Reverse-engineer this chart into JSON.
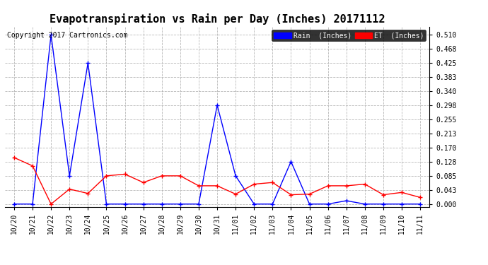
{
  "title": "Evapotranspiration vs Rain per Day (Inches) 20171112",
  "copyright_text": "Copyright 2017 Cartronics.com",
  "x_labels": [
    "10/20",
    "10/21",
    "10/22",
    "10/23",
    "10/24",
    "10/25",
    "10/26",
    "10/27",
    "10/28",
    "10/29",
    "10/30",
    "10/31",
    "11/01",
    "11/02",
    "11/03",
    "11/04",
    "11/05",
    "11/06",
    "11/07",
    "11/08",
    "11/09",
    "11/10",
    "11/11"
  ],
  "rain_values": [
    0.0,
    0.0,
    0.51,
    0.085,
    0.425,
    0.0,
    0.0,
    0.0,
    0.0,
    0.0,
    0.0,
    0.298,
    0.085,
    0.0,
    0.0,
    0.128,
    0.0,
    0.0,
    0.01,
    0.0,
    0.0,
    0.0,
    0.0
  ],
  "et_values": [
    0.14,
    0.115,
    0.0,
    0.045,
    0.032,
    0.085,
    0.09,
    0.065,
    0.085,
    0.085,
    0.055,
    0.055,
    0.03,
    0.06,
    0.065,
    0.028,
    0.03,
    0.055,
    0.055,
    0.06,
    0.028,
    0.035,
    0.02
  ],
  "rain_color": "#0000ff",
  "et_color": "#ff0000",
  "background_color": "#ffffff",
  "grid_color": "#b0b0b0",
  "yticks": [
    0.0,
    0.043,
    0.085,
    0.128,
    0.17,
    0.213,
    0.255,
    0.298,
    0.34,
    0.383,
    0.425,
    0.468,
    0.51
  ],
  "ylim": [
    -0.008,
    0.535
  ],
  "title_fontsize": 11,
  "tick_fontsize": 7,
  "copyright_fontsize": 7,
  "legend_rain_label": "Rain  (Inches)",
  "legend_et_label": "ET  (Inches)"
}
